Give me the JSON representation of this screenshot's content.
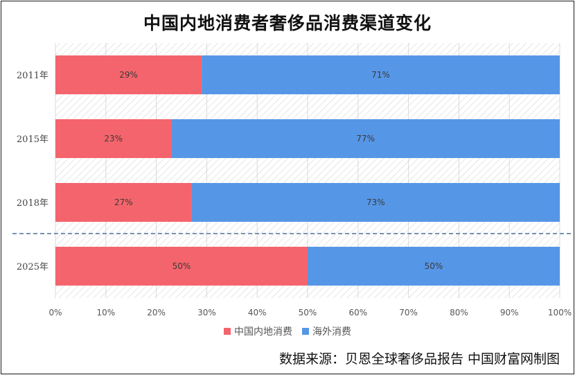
{
  "chart_data": {
    "type": "bar",
    "orientation": "horizontal",
    "stacked": "percent",
    "title": "中国内地消费者奢侈品消费渠道变化",
    "categories": [
      "2011年",
      "2015年",
      "2018年",
      "2025年"
    ],
    "series": [
      {
        "name": "中国内地消费",
        "values": [
          29,
          23,
          27,
          50
        ],
        "labels": [
          "29%",
          "23%",
          "27%",
          "50%"
        ],
        "color": "#f4646c"
      },
      {
        "name": "海外消费",
        "values": [
          71,
          77,
          73,
          50
        ],
        "labels": [
          "71%",
          "77%",
          "73%",
          "50%"
        ],
        "color": "#5696e6"
      }
    ],
    "x_ticks": [
      "0%",
      "10%",
      "20%",
      "30%",
      "40%",
      "50%",
      "60%",
      "70%",
      "80%",
      "90%",
      "100%"
    ],
    "xlim": [
      0,
      100
    ],
    "grid": true,
    "legend_position": "bottom",
    "annotation": "dashed separator line between 2018年 and 2025年"
  },
  "source": "数据来源：贝恩全球奢侈品报告 中国财富网制图"
}
